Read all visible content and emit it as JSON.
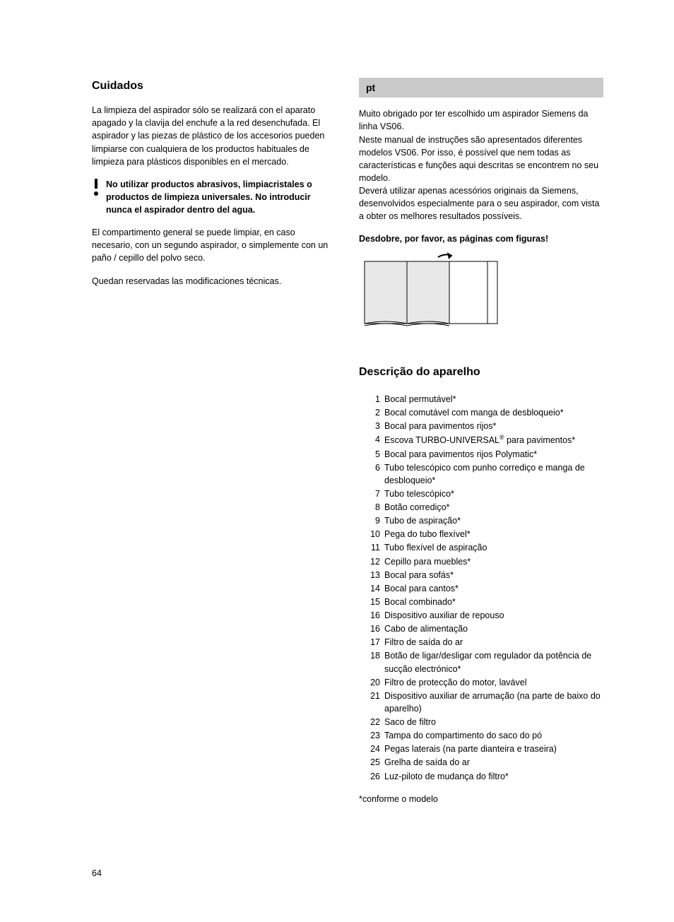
{
  "colors": {
    "text": "#000000",
    "background": "#ffffff",
    "lang_bar_bg": "#c9c9c9",
    "book_fill": "#e8e8e8"
  },
  "fonts": {
    "body_size_pt": 12.5,
    "heading_size_pt": 16
  },
  "left": {
    "heading": "Cuidados",
    "p1": "La limpieza del aspirador sólo se realizará con el aparato apagado y la clavija del enchufe a la red desenchufada. El aspirador y las piezas de plástico de los accesorios pueden limpiarse con cualquiera de los productos habituales de limpieza para plásticos disponibles en el mercado.",
    "warning": "No utilizar productos abrasivos, limpiacristales o productos de limpieza universales. No introducir nunca el aspirador dentro del agua.",
    "p2": "El compartimento general se puede limpiar, en caso necesario, con un segundo aspirador, o simplemente con un paño / cepillo del polvo seco.",
    "p3": "Quedan reservadas las modificaciones técnicas."
  },
  "right": {
    "lang": "pt",
    "intro_p1": "Muito obrigado por ter escolhido um aspirador Siemens da linha VS06.",
    "intro_p2": "Neste manual de instruções são apresentados diferentes modelos VS06. Por isso, é possível que nem todas as características e funções aqui descritas se encontrem no seu modelo.",
    "intro_p3": "Deverá utilizar apenas acessórios originais da Siemens, desenvolvidos especialmente para o seu aspirador, com vista a obter os melhores resultados possíveis.",
    "unfold": "Desdobre, por favor, as páginas com figuras!",
    "desc_heading": "Descrição do aparelho",
    "items": [
      {
        "n": "1",
        "t": "Bocal permutável*"
      },
      {
        "n": "2",
        "t": "Bocal comutável com manga de desbloqueio*"
      },
      {
        "n": "3",
        "t": "Bocal para pavimentos rijos*"
      },
      {
        "n": "4",
        "t": "Escova TURBO-UNIVERSAL® para pavimentos*"
      },
      {
        "n": "5",
        "t": "Bocal para pavimentos rijos Polymatic*"
      },
      {
        "n": "6",
        "t": "Tubo telescópico com punho corrediço e manga de desbloqueio*"
      },
      {
        "n": "7",
        "t": "Tubo telescópico*"
      },
      {
        "n": "8",
        "t": "Botão corrediço*"
      },
      {
        "n": "9",
        "t": "Tubo de aspiração*"
      },
      {
        "n": "10",
        "t": "Pega do tubo flexível*"
      },
      {
        "n": "11",
        "t": "Tubo flexível de aspiração"
      },
      {
        "n": "12",
        "t": "Cepillo para muebles*"
      },
      {
        "n": "13",
        "t": "Bocal para sofás*"
      },
      {
        "n": "14",
        "t": "Bocal para cantos*"
      },
      {
        "n": "15",
        "t": "Bocal combinado*"
      },
      {
        "n": "16",
        "t": "Dispositivo auxiliar de repouso"
      },
      {
        "n": "16",
        "t": "Cabo de alimentação"
      },
      {
        "n": "17",
        "t": "Filtro de saída do ar"
      },
      {
        "n": "18",
        "t": "Botão de ligar/desligar com regulador da potência de sucção electrónico*"
      },
      {
        "n": "20",
        "t": "Filtro de protecção do motor, lavável"
      },
      {
        "n": "21",
        "t": "Dispositivo auxiliar de arrumação (na parte de baixo do aparelho)"
      },
      {
        "n": "22",
        "t": "Saco de filtro"
      },
      {
        "n": "23",
        "t": "Tampa do compartimento do saco do pó"
      },
      {
        "n": "24",
        "t": "Pegas laterais (na parte dianteira e traseira)"
      },
      {
        "n": "25",
        "t": "Grelha de saída do ar"
      },
      {
        "n": "26",
        "t": "Luz-piloto de mudança do filtro*"
      }
    ],
    "footnote": "*conforme o modelo"
  },
  "page_number": "64"
}
